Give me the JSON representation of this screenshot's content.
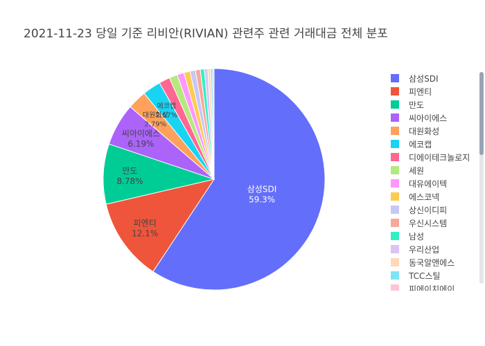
{
  "chart_data": {
    "type": "pie",
    "title": "2021-11-23 당일 기준 리비안(RIVIAN) 관련주 관련 거래대금 전체 분포",
    "slices": [
      {
        "label": "삼성SDI",
        "percent": 59.3,
        "color": "#636efa"
      },
      {
        "label": "피엔티",
        "percent": 12.1,
        "color": "#EF553B"
      },
      {
        "label": "만도",
        "percent": 8.78,
        "color": "#00cc96"
      },
      {
        "label": "씨아이에스",
        "percent": 6.19,
        "color": "#ab63fa"
      },
      {
        "label": "대원화성",
        "percent": 2.79,
        "color": "#FFA15A"
      },
      {
        "label": "에코캡",
        "percent": 2.67,
        "color": "#19d3f3"
      },
      {
        "label": "디에이테크놀로지",
        "percent": 1.6,
        "color": "#FF6692"
      },
      {
        "label": "세원",
        "percent": 1.2,
        "color": "#B6E880"
      },
      {
        "label": "대유에이텍",
        "percent": 1.0,
        "color": "#FF97FF"
      },
      {
        "label": "에스코넥",
        "percent": 0.9,
        "color": "#FECB52"
      },
      {
        "label": "상신이디피",
        "percent": 0.8,
        "color": "#c6c8f5"
      },
      {
        "label": "우신시스템",
        "percent": 0.7,
        "color": "#f7a89c"
      },
      {
        "label": "남성",
        "percent": 0.6,
        "color": "#33f0c4"
      },
      {
        "label": "우리산업",
        "percent": 0.5,
        "color": "#d9c4f5"
      },
      {
        "label": "동국알앤에스",
        "percent": 0.4,
        "color": "#ffd8b8"
      },
      {
        "label": "TCC스틸",
        "percent": 0.3,
        "color": "#7fe5f5"
      },
      {
        "label": "피에이치에이",
        "percent": 0.2,
        "color": "#ffc4d6"
      }
    ],
    "legend_placement": "right"
  }
}
